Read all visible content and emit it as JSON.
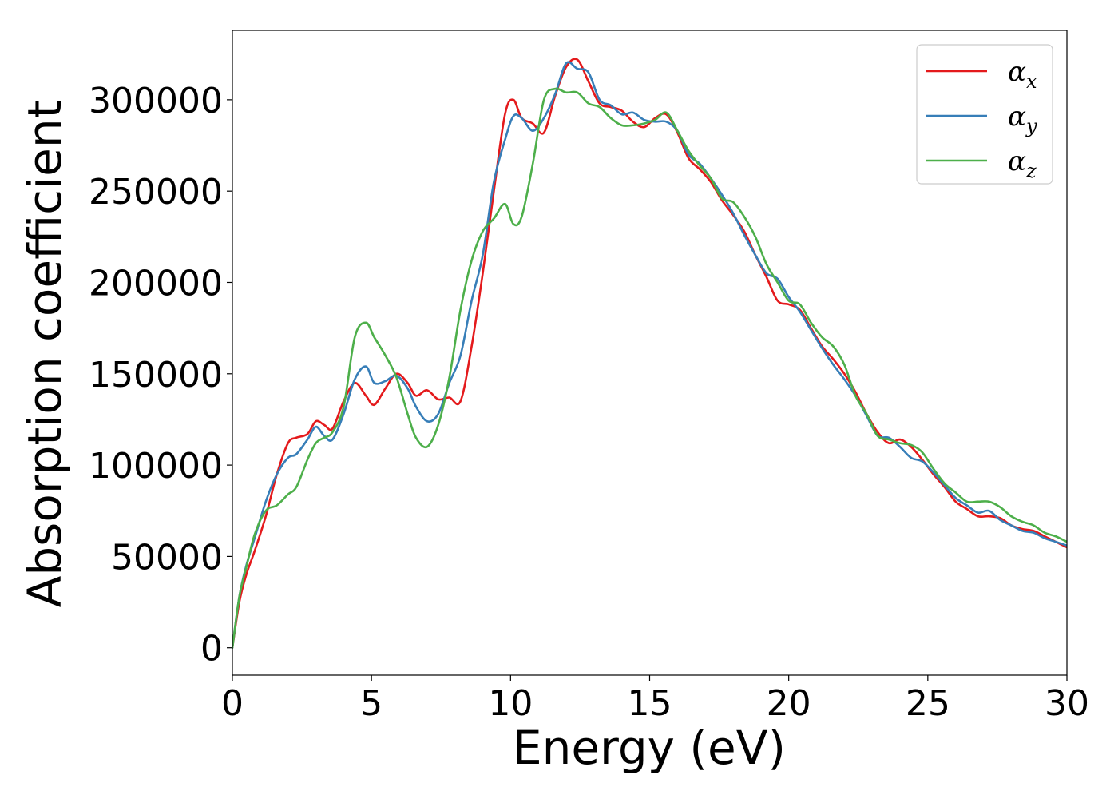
{
  "chart_data": {
    "type": "line",
    "xlabel": "Energy (eV)",
    "ylabel": "Absorption coefficient",
    "xlim": [
      0,
      30
    ],
    "ylim": [
      -15000,
      338000
    ],
    "xticks": [
      0,
      5,
      10,
      15,
      20,
      25,
      30
    ],
    "yticks": [
      0,
      50000,
      100000,
      150000,
      200000,
      250000,
      300000
    ],
    "grid": false,
    "legend_position": "top-right",
    "series": [
      {
        "name": "α_x",
        "symbol": "α",
        "subscript": "x",
        "color": "#e41a1c",
        "x": [
          0,
          0.25,
          0.5,
          0.8,
          1.2,
          1.6,
          2.0,
          2.3,
          2.7,
          3.0,
          3.3,
          3.6,
          4.0,
          4.4,
          4.8,
          5.1,
          5.5,
          5.9,
          6.3,
          6.6,
          7.0,
          7.4,
          7.8,
          8.2,
          8.6,
          9.0,
          9.4,
          9.8,
          10.1,
          10.4,
          10.8,
          11.2,
          11.6,
          12.0,
          12.4,
          12.8,
          13.2,
          13.6,
          14.0,
          14.4,
          14.8,
          15.2,
          15.6,
          16.0,
          16.4,
          16.8,
          17.2,
          17.6,
          18.0,
          18.4,
          18.8,
          19.2,
          19.6,
          20.0,
          20.4,
          20.8,
          21.2,
          21.6,
          22.0,
          22.4,
          22.8,
          23.2,
          23.6,
          24.0,
          24.4,
          24.8,
          25.2,
          25.6,
          26.0,
          26.4,
          26.8,
          27.2,
          27.6,
          28.0,
          28.4,
          28.8,
          29.2,
          29.6,
          30.0
        ],
        "values": [
          0,
          25000,
          40000,
          53000,
          72000,
          95000,
          112000,
          115000,
          117000,
          124000,
          122000,
          120000,
          135000,
          145000,
          138000,
          133000,
          142000,
          150000,
          145000,
          138000,
          141000,
          136000,
          137000,
          135000,
          165000,
          205000,
          250000,
          292000,
          300000,
          290000,
          287000,
          282000,
          302000,
          318000,
          322000,
          310000,
          298000,
          296000,
          294000,
          288000,
          285000,
          290000,
          292000,
          282000,
          268000,
          262000,
          255000,
          245000,
          237000,
          228000,
          215000,
          203000,
          190000,
          188000,
          185000,
          175000,
          165000,
          158000,
          150000,
          140000,
          128000,
          118000,
          112000,
          114000,
          110000,
          103000,
          95000,
          88000,
          80000,
          76000,
          72000,
          72000,
          71000,
          67000,
          65000,
          64000,
          61000,
          58000,
          55000
        ]
      },
      {
        "name": "α_y",
        "symbol": "α",
        "subscript": "y",
        "color": "#377eb8",
        "x": [
          0,
          0.25,
          0.5,
          0.8,
          1.2,
          1.6,
          2.0,
          2.3,
          2.7,
          3.0,
          3.3,
          3.6,
          4.0,
          4.4,
          4.8,
          5.1,
          5.5,
          5.9,
          6.3,
          6.6,
          7.0,
          7.4,
          7.8,
          8.2,
          8.6,
          9.0,
          9.4,
          9.8,
          10.1,
          10.4,
          10.8,
          11.2,
          11.6,
          12.0,
          12.4,
          12.8,
          13.2,
          13.6,
          14.0,
          14.4,
          14.8,
          15.2,
          15.6,
          16.0,
          16.4,
          16.8,
          17.2,
          17.6,
          18.0,
          18.4,
          18.8,
          19.2,
          19.6,
          20.0,
          20.4,
          20.8,
          21.2,
          21.6,
          22.0,
          22.4,
          22.8,
          23.2,
          23.6,
          24.0,
          24.4,
          24.8,
          25.2,
          25.6,
          26.0,
          26.4,
          26.8,
          27.2,
          27.6,
          28.0,
          28.4,
          28.8,
          29.2,
          29.6,
          30.0
        ],
        "values": [
          0,
          28000,
          45000,
          60000,
          80000,
          95000,
          104000,
          106000,
          114000,
          121000,
          116000,
          114000,
          128000,
          147000,
          154000,
          145000,
          146000,
          149000,
          142000,
          132000,
          124000,
          128000,
          145000,
          160000,
          190000,
          215000,
          255000,
          278000,
          291000,
          290000,
          283000,
          290000,
          303000,
          320000,
          317000,
          315000,
          300000,
          297000,
          292000,
          293000,
          289000,
          288000,
          288000,
          283000,
          270000,
          265000,
          257000,
          248000,
          238000,
          226000,
          215000,
          205000,
          202000,
          192000,
          184000,
          174000,
          164000,
          155000,
          147000,
          138000,
          127000,
          116000,
          115000,
          110000,
          104000,
          102000,
          96000,
          89000,
          82000,
          78000,
          74000,
          75000,
          70000,
          67000,
          64000,
          63000,
          60000,
          58000,
          56000
        ]
      },
      {
        "name": "α_z",
        "symbol": "α",
        "subscript": "z",
        "color": "#4daf4a",
        "x": [
          0,
          0.25,
          0.5,
          0.8,
          1.2,
          1.6,
          2.0,
          2.3,
          2.7,
          3.0,
          3.3,
          3.6,
          4.0,
          4.4,
          4.8,
          5.1,
          5.5,
          5.9,
          6.3,
          6.6,
          7.0,
          7.4,
          7.8,
          8.2,
          8.6,
          9.0,
          9.4,
          9.8,
          10.1,
          10.4,
          10.8,
          11.2,
          11.6,
          12.0,
          12.4,
          12.8,
          13.2,
          13.6,
          14.0,
          14.4,
          14.8,
          15.2,
          15.6,
          16.0,
          16.4,
          16.8,
          17.2,
          17.6,
          18.0,
          18.4,
          18.8,
          19.2,
          19.6,
          20.0,
          20.4,
          20.8,
          21.2,
          21.6,
          22.0,
          22.4,
          22.8,
          23.2,
          23.6,
          24.0,
          24.4,
          24.8,
          25.2,
          25.6,
          26.0,
          26.4,
          26.8,
          27.2,
          27.6,
          28.0,
          28.4,
          28.8,
          29.2,
          29.6,
          30.0
        ],
        "values": [
          0,
          28000,
          44000,
          62000,
          75000,
          78000,
          84000,
          88000,
          103000,
          112000,
          115000,
          118000,
          132000,
          170000,
          178000,
          170000,
          160000,
          148000,
          128000,
          115000,
          110000,
          122000,
          148000,
          185000,
          212000,
          228000,
          235000,
          243000,
          232000,
          236000,
          265000,
          300000,
          306000,
          304000,
          304000,
          298000,
          296000,
          290000,
          286000,
          286000,
          287000,
          289000,
          293000,
          283000,
          272000,
          264000,
          257000,
          246000,
          244000,
          236000,
          225000,
          210000,
          200000,
          190000,
          188000,
          178000,
          170000,
          165000,
          155000,
          138000,
          128000,
          116000,
          114000,
          112000,
          111000,
          107000,
          98000,
          90000,
          85000,
          80000,
          80000,
          80000,
          77000,
          72000,
          69000,
          67000,
          63000,
          61000,
          58000
        ]
      }
    ]
  }
}
